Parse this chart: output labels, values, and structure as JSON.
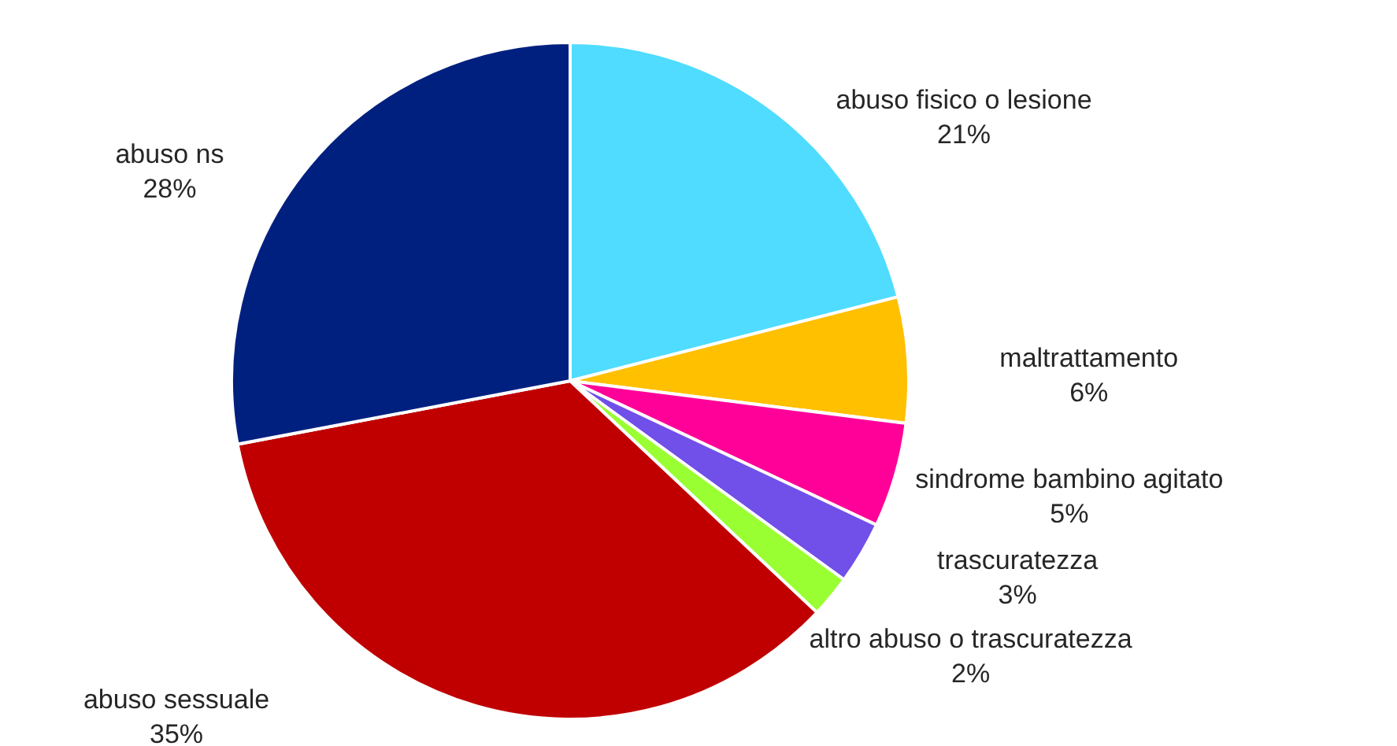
{
  "chart_data": {
    "type": "pie",
    "categories": [
      "abuso fisico o lesione",
      "maltrattamento",
      "sindrome bambino agitato",
      "trascuratezza",
      "altro abuso o trascuratezza",
      "abuso sessuale",
      "abuso ns"
    ],
    "values": [
      21,
      6,
      5,
      3,
      2,
      35,
      28
    ],
    "value_labels": [
      "21%",
      "6%",
      "5%",
      "3%",
      "2%",
      "35%",
      "28%"
    ],
    "colors": [
      "#4fdcff",
      "#ffc000",
      "#ff0099",
      "#7050e8",
      "#99ff33",
      "#c00000",
      "#002080"
    ]
  }
}
